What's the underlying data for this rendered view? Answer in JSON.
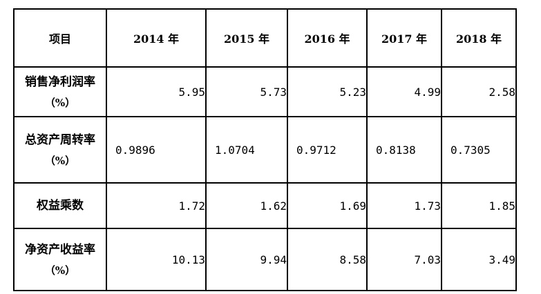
{
  "table": {
    "header": [
      "项目",
      "2014 年",
      "2015 年",
      "2016 年",
      "2017 年",
      "2018 年"
    ],
    "rows": [
      {
        "label": "销售净利润率",
        "unit": "（%）",
        "values": [
          "5.95",
          "5.73",
          "5.23",
          "4.99",
          "2.58"
        ]
      },
      {
        "label": "总资产周转率",
        "unit": "（%）",
        "values": [
          "0.9896",
          "1.0704",
          "0.9712",
          "0.8138",
          "0.7305"
        ]
      },
      {
        "label": "权益乘数",
        "unit": "",
        "values": [
          "1.72",
          "1.62",
          "1.69",
          "1.73",
          "1.85"
        ]
      },
      {
        "label": "净资产收益率",
        "unit": "（%）",
        "values": [
          "10.13",
          "9.94",
          "8.58",
          "7.03",
          "3.49"
        ]
      }
    ]
  }
}
